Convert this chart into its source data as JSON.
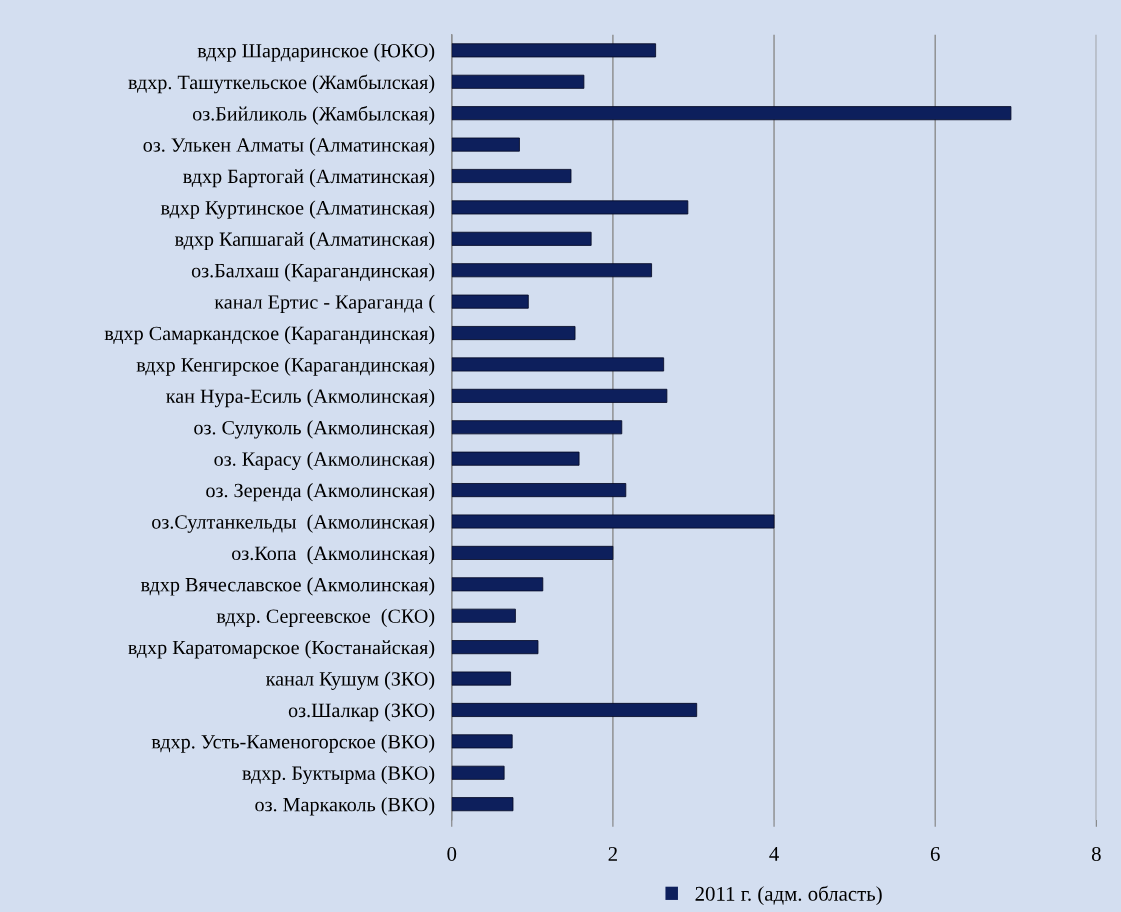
{
  "chart_data": {
    "type": "bar",
    "orientation": "horizontal",
    "categories": [
      "вдхр Шардаринское (ЮКО)",
      "вдхр. Ташуткельское (Жамбылская)",
      "оз.Бийликоль (Жамбылская)",
      "оз. Улькен Алматы (Алматинская)",
      "вдхр Бартогай (Алматинская)",
      "вдхр Куртинское (Алматинская)",
      "вдхр Капшагай (Алматинская)",
      "оз.Балхаш (Карагандинская)",
      "канал Ертис - Караганда (",
      "вдхр Самаркандское (Карагандинская)",
      "вдхр Кенгирское (Карагандинская)",
      "кан Нура-Есиль (Акмолинская)",
      "оз. Сулуколь (Акмолинская)",
      "оз. Карасу (Акмолинская)",
      "оз. Зеренда (Акмолинская)",
      "оз.Султанкельды  (Акмолинская)",
      "оз.Копа  (Акмолинская)",
      "вдхр Вячеславское (Акмолинская)",
      "вдхр. Сергеевское  (СКО)",
      "вдхр Каратомарское (Костанайская)",
      "канал Кушум (ЗКО)",
      "оз.Шалкар (ЗКО)",
      "вдхр. Усть-Каменогорское (ВКО)",
      "вдхр. Буктырма (ВКО)",
      "оз. Маркаколь (ВКО)"
    ],
    "series": [
      {
        "name": "2011 г. (адм. область)",
        "color": "#0d1f5c",
        "values": [
          2.53,
          1.64,
          6.94,
          0.84,
          1.48,
          2.93,
          1.73,
          2.48,
          0.95,
          1.53,
          2.63,
          2.67,
          2.11,
          1.58,
          2.16,
          4.0,
          2.0,
          1.13,
          0.79,
          1.07,
          0.73,
          3.04,
          0.75,
          0.65,
          0.76
        ]
      }
    ],
    "xlim": [
      0,
      8
    ],
    "xticks": [
      0,
      2,
      4,
      6,
      8
    ],
    "grid": "x",
    "legend": "bottom"
  }
}
